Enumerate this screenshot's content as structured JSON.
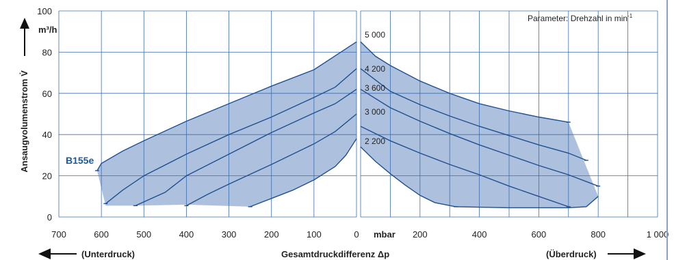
{
  "chart_data": {
    "type": "area",
    "title": "",
    "ylabel": "Ansaugvolumenstrom V̇",
    "yunit": "m³/h",
    "xlabel": "Gesamtdruckdifferenz Δp",
    "xunit": "mbar",
    "left_direction": "(Unterdruck)",
    "right_direction": "(Überdruck)",
    "parameter_note": "Parameter: Drehzahl in min",
    "parameter_note_sup": "-1",
    "model": "B155e",
    "accent_color": "#1a5aa0",
    "fill_color": "#adc0de",
    "grid": true,
    "ylim": [
      0,
      100
    ],
    "yticks": [
      "0",
      "20",
      "40",
      "60",
      "80",
      "100"
    ],
    "left_panel": {
      "xlim": [
        700,
        0
      ],
      "xticks": [
        "700",
        "600",
        "500",
        "400",
        "300",
        "200",
        "100",
        "0"
      ]
    },
    "right_panel": {
      "xlim": [
        0,
        1000
      ],
      "xticks": [
        "0",
        "200",
        "400",
        "600",
        "800",
        "1 000"
      ]
    },
    "series": [
      {
        "name": "5 000",
        "vacuum": [
          [
            610,
            22.5
          ],
          [
            600,
            26
          ],
          [
            550,
            32
          ],
          [
            500,
            37
          ],
          [
            400,
            46.5
          ],
          [
            300,
            55
          ],
          [
            200,
            63.5
          ],
          [
            100,
            71.5
          ],
          [
            0,
            85
          ]
        ],
        "pressure": [
          [
            0,
            85
          ],
          [
            50,
            78
          ],
          [
            100,
            73.5
          ],
          [
            200,
            66
          ],
          [
            300,
            60
          ],
          [
            400,
            55
          ],
          [
            500,
            51.5
          ],
          [
            600,
            48.5
          ],
          [
            700,
            46
          ]
        ]
      },
      {
        "name": "4 200",
        "vacuum": [
          [
            590,
            6.5
          ],
          [
            550,
            13
          ],
          [
            500,
            20
          ],
          [
            400,
            30.5
          ],
          [
            300,
            40
          ],
          [
            200,
            48.5
          ],
          [
            100,
            58
          ],
          [
            50,
            63
          ],
          [
            0,
            72
          ]
        ],
        "pressure": [
          [
            0,
            72
          ],
          [
            100,
            61
          ],
          [
            200,
            54.5
          ],
          [
            300,
            49
          ],
          [
            400,
            44
          ],
          [
            500,
            39.5
          ],
          [
            600,
            35
          ],
          [
            700,
            31
          ],
          [
            760,
            27.5
          ]
        ]
      },
      {
        "name": "3 600",
        "vacuum": [
          [
            520,
            5.5
          ],
          [
            450,
            12
          ],
          [
            400,
            20
          ],
          [
            300,
            30.5
          ],
          [
            200,
            41
          ],
          [
            100,
            50.5
          ],
          [
            50,
            55
          ],
          [
            0,
            62
          ]
        ],
        "pressure": [
          [
            0,
            62
          ],
          [
            100,
            53
          ],
          [
            200,
            46.5
          ],
          [
            300,
            40.5
          ],
          [
            400,
            35
          ],
          [
            500,
            30
          ],
          [
            600,
            25
          ],
          [
            700,
            20.5
          ],
          [
            800,
            15
          ]
        ]
      },
      {
        "name": "3 000",
        "vacuum": [
          [
            400,
            5.5
          ],
          [
            350,
            11
          ],
          [
            300,
            16
          ],
          [
            200,
            25.5
          ],
          [
            100,
            35.5
          ],
          [
            50,
            41.5
          ],
          [
            0,
            50
          ]
        ],
        "pressure": [
          [
            0,
            44
          ],
          [
            100,
            37
          ],
          [
            200,
            31
          ],
          [
            300,
            25.5
          ],
          [
            400,
            20.5
          ],
          [
            500,
            15
          ],
          [
            600,
            10
          ],
          [
            700,
            5
          ]
        ]
      },
      {
        "name": "2 200",
        "vacuum": [
          [
            250,
            5
          ],
          [
            200,
            9
          ],
          [
            150,
            13
          ],
          [
            100,
            18
          ],
          [
            50,
            24.5
          ],
          [
            25,
            30
          ],
          [
            0,
            38
          ]
        ],
        "pressure": [
          [
            0,
            34
          ],
          [
            50,
            27
          ],
          [
            100,
            21
          ],
          [
            150,
            15.5
          ],
          [
            200,
            10.5
          ],
          [
            250,
            7
          ],
          [
            320,
            5
          ]
        ]
      }
    ],
    "envelope_bottom": {
      "vacuum": [
        [
          590,
          5.5
        ],
        [
          520,
          5.5
        ],
        [
          400,
          6
        ],
        [
          250,
          5
        ]
      ],
      "pressure": [
        [
          320,
          5
        ],
        [
          500,
          4.5
        ],
        [
          700,
          4.5
        ],
        [
          760,
          5
        ],
        [
          800,
          10
        ]
      ]
    }
  }
}
